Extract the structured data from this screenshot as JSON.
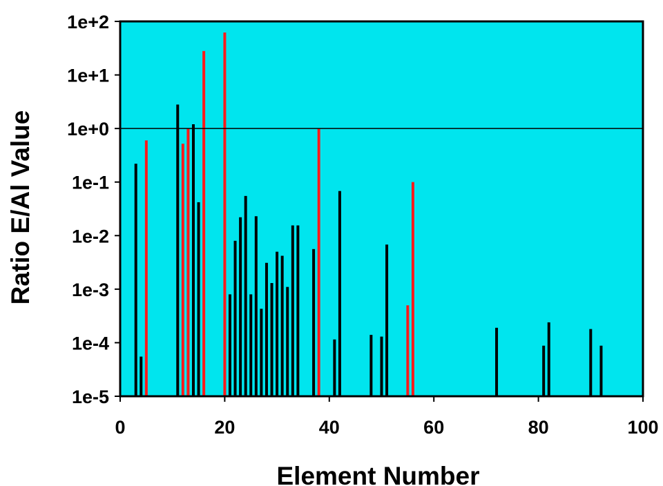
{
  "chart_data": {
    "type": "bar",
    "title": "",
    "xlabel": "Element Number",
    "ylabel": "Ratio E/Al Value",
    "y_scale": "log",
    "xlim": [
      0,
      100
    ],
    "ylim": [
      1e-05,
      100
    ],
    "x_ticks": [
      {
        "value": 0,
        "label": "0"
      },
      {
        "value": 20,
        "label": "20"
      },
      {
        "value": 40,
        "label": "40"
      },
      {
        "value": 60,
        "label": "60"
      },
      {
        "value": 80,
        "label": "80"
      },
      {
        "value": 100,
        "label": "100"
      }
    ],
    "y_ticks": [
      {
        "value": 1e-05,
        "label": "1e-5"
      },
      {
        "value": 0.0001,
        "label": "1e-4"
      },
      {
        "value": 0.001,
        "label": "1e-3"
      },
      {
        "value": 0.01,
        "label": "1e-2"
      },
      {
        "value": 0.1,
        "label": "1e-1"
      },
      {
        "value": 1,
        "label": "1e+0"
      },
      {
        "value": 10,
        "label": "1e+1"
      },
      {
        "value": 100,
        "label": "1e+2"
      }
    ],
    "reference_line": 1,
    "grid": false,
    "colors": {
      "plot_background": "#00E5EE",
      "black_series": "#000000",
      "red_series": "#FF1A1A",
      "frame": "#000000"
    },
    "series": [
      {
        "color_key": "black_series",
        "points": [
          {
            "x": 3,
            "y": 0.22
          },
          {
            "x": 4,
            "y": 5.5e-05
          },
          {
            "x": 11,
            "y": 2.8
          },
          {
            "x": 14,
            "y": 1.2
          },
          {
            "x": 15,
            "y": 0.042
          },
          {
            "x": 21,
            "y": 0.0008
          },
          {
            "x": 22,
            "y": 0.008
          },
          {
            "x": 23,
            "y": 0.022
          },
          {
            "x": 24,
            "y": 0.055
          },
          {
            "x": 25,
            "y": 0.0008
          },
          {
            "x": 26,
            "y": 0.023
          },
          {
            "x": 27,
            "y": 0.00043
          },
          {
            "x": 28,
            "y": 0.0031
          },
          {
            "x": 29,
            "y": 0.0013
          },
          {
            "x": 30,
            "y": 0.005
          },
          {
            "x": 31,
            "y": 0.0042
          },
          {
            "x": 32,
            "y": 0.0011
          },
          {
            "x": 33,
            "y": 0.0155
          },
          {
            "x": 34,
            "y": 0.0155
          },
          {
            "x": 37,
            "y": 0.0056
          },
          {
            "x": 41,
            "y": 0.000115
          },
          {
            "x": 42,
            "y": 0.068
          },
          {
            "x": 48,
            "y": 0.00014
          },
          {
            "x": 50,
            "y": 0.00013
          },
          {
            "x": 51,
            "y": 0.0068
          },
          {
            "x": 72,
            "y": 0.00019
          },
          {
            "x": 81,
            "y": 8.8e-05
          },
          {
            "x": 82,
            "y": 0.00024
          },
          {
            "x": 90,
            "y": 0.00018
          },
          {
            "x": 92,
            "y": 8.8e-05
          }
        ]
      },
      {
        "color_key": "red_series",
        "points": [
          {
            "x": 5,
            "y": 0.6
          },
          {
            "x": 12,
            "y": 0.52
          },
          {
            "x": 13,
            "y": 1.0
          },
          {
            "x": 16,
            "y": 28
          },
          {
            "x": 20,
            "y": 62
          },
          {
            "x": 38,
            "y": 1.0
          },
          {
            "x": 55,
            "y": 0.0005
          },
          {
            "x": 56,
            "y": 0.1
          }
        ]
      }
    ]
  }
}
